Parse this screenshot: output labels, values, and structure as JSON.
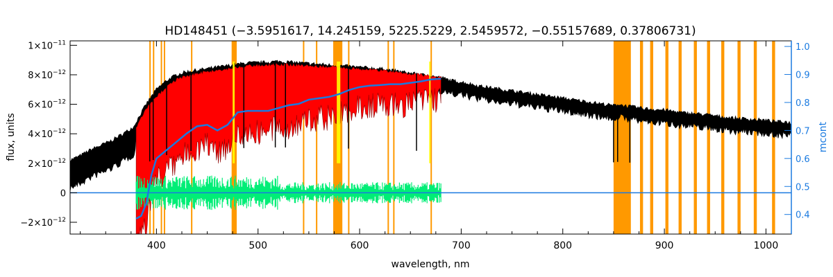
{
  "chart_data": {
    "type": "line",
    "title": "HD148451   (−3.5951617, 14.245159, 5225.5229, 2.5459572, −0.55157689, 0.37806731)",
    "xlabel": "wavelength, nm",
    "ylabel": "flux, units",
    "y2label": "mcont",
    "xlim": [
      315,
      1025
    ],
    "ylim": [
      -2.8e-12,
      1.03e-11
    ],
    "y2lim": [
      0.33,
      1.02
    ],
    "x_ticks": [
      400,
      500,
      600,
      700,
      800,
      900,
      1000
    ],
    "x_tick_labels": [
      "400",
      "500",
      "600",
      "700",
      "800",
      "900",
      "1000"
    ],
    "y_ticks": [
      -2e-12,
      0,
      2e-12,
      4e-12,
      6e-12,
      8e-12,
      1e-11
    ],
    "y_tick_labels": [
      {
        "m": "−2×10",
        "e": "−12"
      },
      {
        "m": "0",
        "e": ""
      },
      {
        "m": "2×10",
        "e": "−12"
      },
      {
        "m": "4×10",
        "e": "−12"
      },
      {
        "m": "6×10",
        "e": "−12"
      },
      {
        "m": "8×10",
        "e": "−12"
      },
      {
        "m": "1×10",
        "e": "−11"
      }
    ],
    "y2_ticks": [
      0.4,
      0.5,
      0.6,
      0.7,
      0.8,
      0.9,
      1.0
    ],
    "y2_tick_labels": [
      "0.4",
      "0.5",
      "0.6",
      "0.7",
      "0.8",
      "0.9",
      "1.0"
    ],
    "colors": {
      "observed": "#000000",
      "model": "#ff0000",
      "residual": "#00ee77",
      "continuum": "#1a7ae0",
      "masked_band": "#ff9900",
      "highlight": "#ffff00",
      "right_axis": "#1a7ae0"
    },
    "series": [
      {
        "key": "observed",
        "x": [
          315,
          325,
          335,
          345,
          355,
          365,
          372,
          378,
          380,
          385,
          390,
          395,
          400,
          410,
          420,
          430,
          440,
          450,
          460,
          470,
          480,
          490,
          500,
          510,
          520,
          530,
          540,
          550,
          560,
          570,
          580,
          590,
          600,
          610,
          620,
          630,
          640,
          650,
          660,
          670,
          680,
          690,
          700,
          720,
          740,
          760,
          780,
          800,
          820,
          840,
          850,
          855,
          860,
          870,
          880,
          900,
          920,
          940,
          960,
          980,
          1000,
          1010,
          1020,
          1025
        ],
        "y": [
          2.2e-12,
          2.5e-12,
          2.9e-12,
          3.2e-12,
          3.5e-12,
          3.9e-12,
          4.2e-12,
          4.5e-12,
          4.8e-12,
          5.4e-12,
          6e-12,
          6.5e-12,
          7e-12,
          7.6e-12,
          8e-12,
          8.2e-12,
          8.3e-12,
          8.4e-12,
          8.5e-12,
          8.6e-12,
          8.7e-12,
          8.8e-12,
          8.8e-12,
          8.85e-12,
          8.9e-12,
          8.85e-12,
          8.8e-12,
          8.75e-12,
          8.7e-12,
          8.65e-12,
          8.6e-12,
          8.55e-12,
          8.5e-12,
          8.45e-12,
          8.4e-12,
          8.3e-12,
          8.2e-12,
          8.1e-12,
          8e-12,
          7.9e-12,
          7.8e-12,
          7.6e-12,
          7.5e-12,
          7.2e-12,
          7e-12,
          6.8e-12,
          6.6e-12,
          6.4e-12,
          6.2e-12,
          6e-12,
          5.9e-12,
          6e-12,
          5.9e-12,
          5.8e-12,
          5.7e-12,
          5.6e-12,
          5.4e-12,
          5.3e-12,
          5.1e-12,
          5e-12,
          4.9e-12,
          4.8e-12,
          4.8e-12,
          4.7e-12
        ]
      },
      {
        "key": "model",
        "x": [
          380,
          390,
          400,
          410,
          420,
          430,
          440,
          450,
          460,
          470,
          480,
          490,
          500,
          520,
          540,
          560,
          580,
          600,
          620,
          640,
          660,
          680
        ],
        "y": [
          4.5e-12,
          5.8e-12,
          6.6e-12,
          7.3e-12,
          7.8e-12,
          8e-12,
          8.2e-12,
          8.3e-12,
          8.4e-12,
          8.5e-12,
          8.6e-12,
          8.7e-12,
          8.75e-12,
          8.8e-12,
          8.75e-12,
          8.65e-12,
          8.6e-12,
          8.5e-12,
          8.4e-12,
          8.25e-12,
          8.1e-12,
          7.9e-12
        ]
      },
      {
        "key": "continuum",
        "axis": "right",
        "x": [
          380,
          385,
          390,
          395,
          400,
          410,
          420,
          430,
          440,
          450,
          460,
          470,
          480,
          490,
          500,
          510,
          520,
          530,
          540,
          550,
          560,
          570,
          580,
          590,
          600,
          610,
          620,
          630,
          640,
          650,
          660,
          670,
          680
        ],
        "y": [
          0.385,
          0.395,
          0.44,
          0.54,
          0.6,
          0.63,
          0.66,
          0.69,
          0.715,
          0.72,
          0.7,
          0.72,
          0.765,
          0.77,
          0.77,
          0.77,
          0.78,
          0.79,
          0.795,
          0.81,
          0.815,
          0.82,
          0.83,
          0.845,
          0.855,
          0.86,
          0.862,
          0.865,
          0.865,
          0.87,
          0.875,
          0.882,
          0.885
        ]
      }
    ],
    "masked_bands_nm": [
      [
        393.0,
        394.0
      ],
      [
        396.5,
        397.5
      ],
      [
        404.2,
        405.2
      ],
      [
        407.2,
        408.2
      ],
      [
        434.0,
        435.0
      ],
      [
        474.0,
        479.0
      ],
      [
        544.2,
        545.2
      ],
      [
        557.0,
        558.0
      ],
      [
        574.0,
        583.0
      ],
      [
        588.6,
        589.6
      ],
      [
        627.5,
        628.5
      ],
      [
        633.0,
        634.0
      ],
      [
        669.8,
        670.8
      ],
      [
        850.0,
        867.0
      ],
      [
        876.0,
        879.0
      ],
      [
        886.0,
        889.0
      ],
      [
        901.0,
        904.0
      ],
      [
        914.0,
        917.0
      ],
      [
        929.0,
        932.0
      ],
      [
        942.0,
        945.0
      ],
      [
        956.0,
        959.0
      ],
      [
        972.0,
        975.0
      ],
      [
        988.0,
        991.0
      ],
      [
        1006.0,
        1009.0
      ]
    ],
    "highlight_bands_nm": [
      [
        475.0,
        477.0
      ],
      [
        577.5,
        581.0
      ],
      [
        668.5,
        669.5
      ]
    ]
  }
}
